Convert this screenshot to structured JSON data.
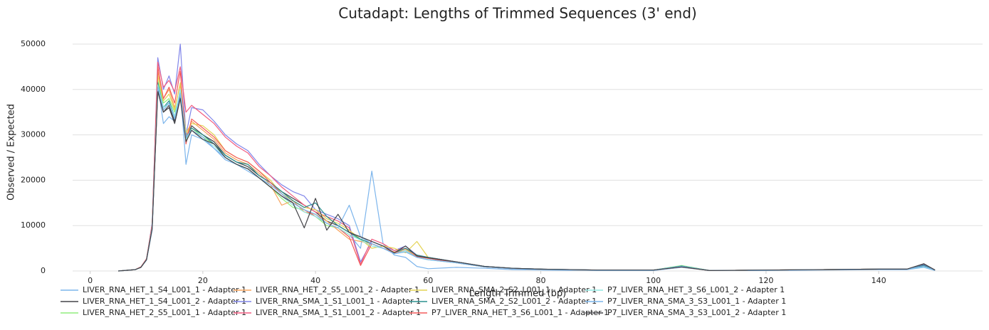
{
  "chart_data": {
    "type": "line",
    "title": "Cutadapt: Lengths of Trimmed Sequences (3' end)",
    "x_label": "Length Trimmed (bp)",
    "y_label": "Observed / Expected",
    "xlim": [
      -3.5,
      152
    ],
    "ylim": [
      0,
      50000
    ],
    "xticks": [
      0,
      20,
      40,
      60,
      80,
      100,
      120,
      140
    ],
    "yticks": [
      0,
      10000,
      20000,
      30000,
      40000,
      50000
    ],
    "grid": true,
    "legend": "bottom",
    "x": [
      5,
      8,
      9,
      10,
      11,
      12,
      13,
      14,
      15,
      16,
      17,
      18,
      20,
      22,
      24,
      26,
      28,
      30,
      32,
      34,
      36,
      38,
      40,
      42,
      44,
      46,
      48,
      50,
      52,
      54,
      56,
      58,
      60,
      65,
      70,
      75,
      80,
      90,
      100,
      105,
      110,
      120,
      130,
      140,
      145,
      148,
      150
    ],
    "series": [
      {
        "name": "LIVER_RNA_HET_1_S4_L001_1 - Adapter 1",
        "color": "#7cb5ec",
        "values": [
          0,
          300,
          800,
          2400,
          9000,
          41000,
          32500,
          34000,
          33000,
          40000,
          23500,
          30000,
          29000,
          27000,
          24500,
          23500,
          22000,
          20500,
          19000,
          17000,
          15000,
          13500,
          12500,
          10500,
          9500,
          8000,
          5000,
          22000,
          6000,
          3500,
          3000,
          1000,
          500,
          800,
          600,
          300,
          200,
          100,
          100,
          800,
          100,
          100,
          200,
          300,
          300,
          800,
          100
        ]
      },
      {
        "name": "LIVER_RNA_HET_1_S4_L001_2 - Adapter 1",
        "color": "#434348",
        "values": [
          0,
          300,
          800,
          2500,
          9500,
          40000,
          35000,
          36500,
          33000,
          38500,
          29000,
          32000,
          30000,
          28500,
          25500,
          24000,
          23000,
          21000,
          19500,
          17500,
          16000,
          14500,
          13000,
          11000,
          10000,
          8500,
          7500,
          6500,
          5500,
          4000,
          5000,
          3500,
          3000,
          2000,
          1000,
          600,
          400,
          200,
          200,
          900,
          100,
          200,
          300,
          400,
          400,
          1500,
          200
        ]
      },
      {
        "name": "LIVER_RNA_HET_2_S5_L001_1 - Adapter 1",
        "color": "#90ed7d",
        "values": [
          0,
          300,
          800,
          2500,
          9800,
          42000,
          37000,
          38000,
          35000,
          39000,
          30000,
          31500,
          29500,
          28000,
          25000,
          23500,
          22500,
          20500,
          18500,
          16000,
          14000,
          13500,
          12000,
          10000,
          9500,
          8000,
          7000,
          6000,
          5000,
          4000,
          4500,
          3000,
          2500,
          1800,
          900,
          500,
          300,
          200,
          200,
          1200,
          100,
          200,
          300,
          400,
          400,
          1000,
          200
        ]
      },
      {
        "name": "LIVER_RNA_HET_2_S5_L001_2 - Adapter 1",
        "color": "#f7a35c",
        "values": [
          0,
          300,
          900,
          2600,
          10000,
          44000,
          38000,
          40000,
          36000,
          41000,
          29500,
          33000,
          31000,
          29000,
          26000,
          24500,
          23500,
          21500,
          19000,
          14500,
          15500,
          13000,
          12500,
          11000,
          9000,
          7000,
          6500,
          6000,
          5000,
          4200,
          4800,
          3200,
          2800,
          1900,
          900,
          500,
          300,
          200,
          200,
          1000,
          100,
          200,
          300,
          400,
          400,
          1200,
          200
        ]
      },
      {
        "name": "LIVER_RNA_SMA_1_S1_L001_1 - Adapter 1",
        "color": "#8085e9",
        "values": [
          0,
          300,
          900,
          2700,
          10500,
          47000,
          40000,
          43000,
          39000,
          50000,
          30000,
          36000,
          35500,
          33000,
          30000,
          28000,
          26500,
          23500,
          21000,
          19000,
          17500,
          16500,
          13500,
          12500,
          11500,
          10000,
          2000,
          6500,
          5500,
          4500,
          5500,
          3500,
          3000,
          2000,
          1000,
          600,
          400,
          200,
          200,
          1000,
          100,
          200,
          300,
          400,
          400,
          1300,
          200
        ]
      },
      {
        "name": "LIVER_RNA_SMA_1_S1_L001_2 - Adapter 1",
        "color": "#f15c80",
        "values": [
          0,
          300,
          900,
          2700,
          10200,
          46000,
          40500,
          42000,
          39500,
          45000,
          35000,
          36500,
          34500,
          32500,
          29500,
          27500,
          26000,
          23000,
          21000,
          18500,
          16500,
          14500,
          13000,
          12000,
          11000,
          9500,
          1500,
          7000,
          6000,
          4500,
          5000,
          3500,
          3000,
          2000,
          900,
          500,
          300,
          200,
          200,
          1000,
          100,
          200,
          300,
          400,
          400,
          1100,
          200
        ]
      },
      {
        "name": "LIVER_RNA_SMA_2_S2_L001_1 - Adapter 1",
        "color": "#e4d354",
        "values": [
          0,
          300,
          850,
          2600,
          10000,
          43000,
          37500,
          39000,
          35500,
          41500,
          30500,
          32500,
          32000,
          30000,
          26500,
          25000,
          24000,
          22000,
          20000,
          17000,
          15500,
          14000,
          13500,
          11500,
          10500,
          9000,
          7000,
          5000,
          5500,
          5000,
          4000,
          6500,
          3000,
          1800,
          900,
          500,
          300,
          200,
          200,
          900,
          100,
          200,
          300,
          400,
          400,
          1000,
          200
        ]
      },
      {
        "name": "LIVER_RNA_SMA_2_S2_L001_2 - Adapter 1",
        "color": "#2b908f",
        "values": [
          0,
          300,
          800,
          2500,
          9600,
          41500,
          36000,
          37500,
          34000,
          39500,
          29500,
          31500,
          30000,
          28000,
          25500,
          24000,
          23500,
          21000,
          19500,
          17500,
          15500,
          14000,
          15000,
          12000,
          10000,
          8500,
          7000,
          6000,
          5000,
          4000,
          5000,
          3500,
          3000,
          2000,
          1000,
          600,
          400,
          200,
          200,
          1100,
          100,
          200,
          300,
          400,
          400,
          1200,
          200
        ]
      },
      {
        "name": "P7_LIVER_RNA_HET_3_S6_L001_1 - Adapter 1",
        "color": "#f45b5b",
        "values": [
          0,
          300,
          900,
          2600,
          10000,
          45000,
          38000,
          40500,
          37000,
          44000,
          28000,
          33500,
          31500,
          29500,
          26500,
          25000,
          24000,
          22000,
          19500,
          17000,
          15000,
          13500,
          12000,
          10500,
          9500,
          7500,
          1200,
          6000,
          5000,
          4000,
          4500,
          3200,
          2800,
          1800,
          900,
          500,
          300,
          200,
          200,
          900,
          100,
          200,
          300,
          400,
          400,
          1000,
          200
        ]
      },
      {
        "name": "P7_LIVER_RNA_HET_3_S6_L001_2 - Adapter 1",
        "color": "#91e8e1",
        "values": [
          0,
          300,
          800,
          2500,
          9500,
          41000,
          36000,
          37000,
          34000,
          40000,
          29000,
          31000,
          29000,
          27500,
          25000,
          23500,
          22500,
          20500,
          18500,
          16500,
          14500,
          13000,
          12000,
          10500,
          9500,
          8000,
          6800,
          5500,
          5000,
          3800,
          4500,
          3000,
          2500,
          1800,
          900,
          500,
          300,
          200,
          200,
          1000,
          100,
          200,
          300,
          400,
          400,
          900,
          200
        ]
      },
      {
        "name": "P7_LIVER_RNA_SMA_3_S3_L001_1 - Adapter 1",
        "color": "#7cb5ec",
        "values": [
          0,
          300,
          800,
          2500,
          9400,
          40500,
          35500,
          37000,
          33500,
          39000,
          29500,
          31000,
          29500,
          27000,
          25000,
          23500,
          22500,
          20500,
          19000,
          17000,
          15000,
          13500,
          12500,
          10500,
          9500,
          14500,
          7500,
          6000,
          5000,
          3800,
          4200,
          3000,
          2500,
          1800,
          900,
          500,
          300,
          200,
          200,
          1000,
          100,
          200,
          300,
          400,
          400,
          1000,
          200
        ]
      },
      {
        "name": "P7_LIVER_RNA_SMA_3_S3_L001_2 - Adapter 1",
        "color": "#434348",
        "values": [
          0,
          300,
          800,
          2500,
          9300,
          39500,
          35000,
          36000,
          32500,
          38000,
          28500,
          31000,
          29000,
          28000,
          25000,
          23500,
          22500,
          20500,
          18500,
          16500,
          15000,
          9500,
          16000,
          9000,
          12500,
          8500,
          7500,
          6500,
          5500,
          4000,
          5500,
          3300,
          2900,
          2000,
          1000,
          600,
          400,
          200,
          200,
          900,
          100,
          200,
          300,
          400,
          400,
          1600,
          200
        ]
      }
    ]
  }
}
